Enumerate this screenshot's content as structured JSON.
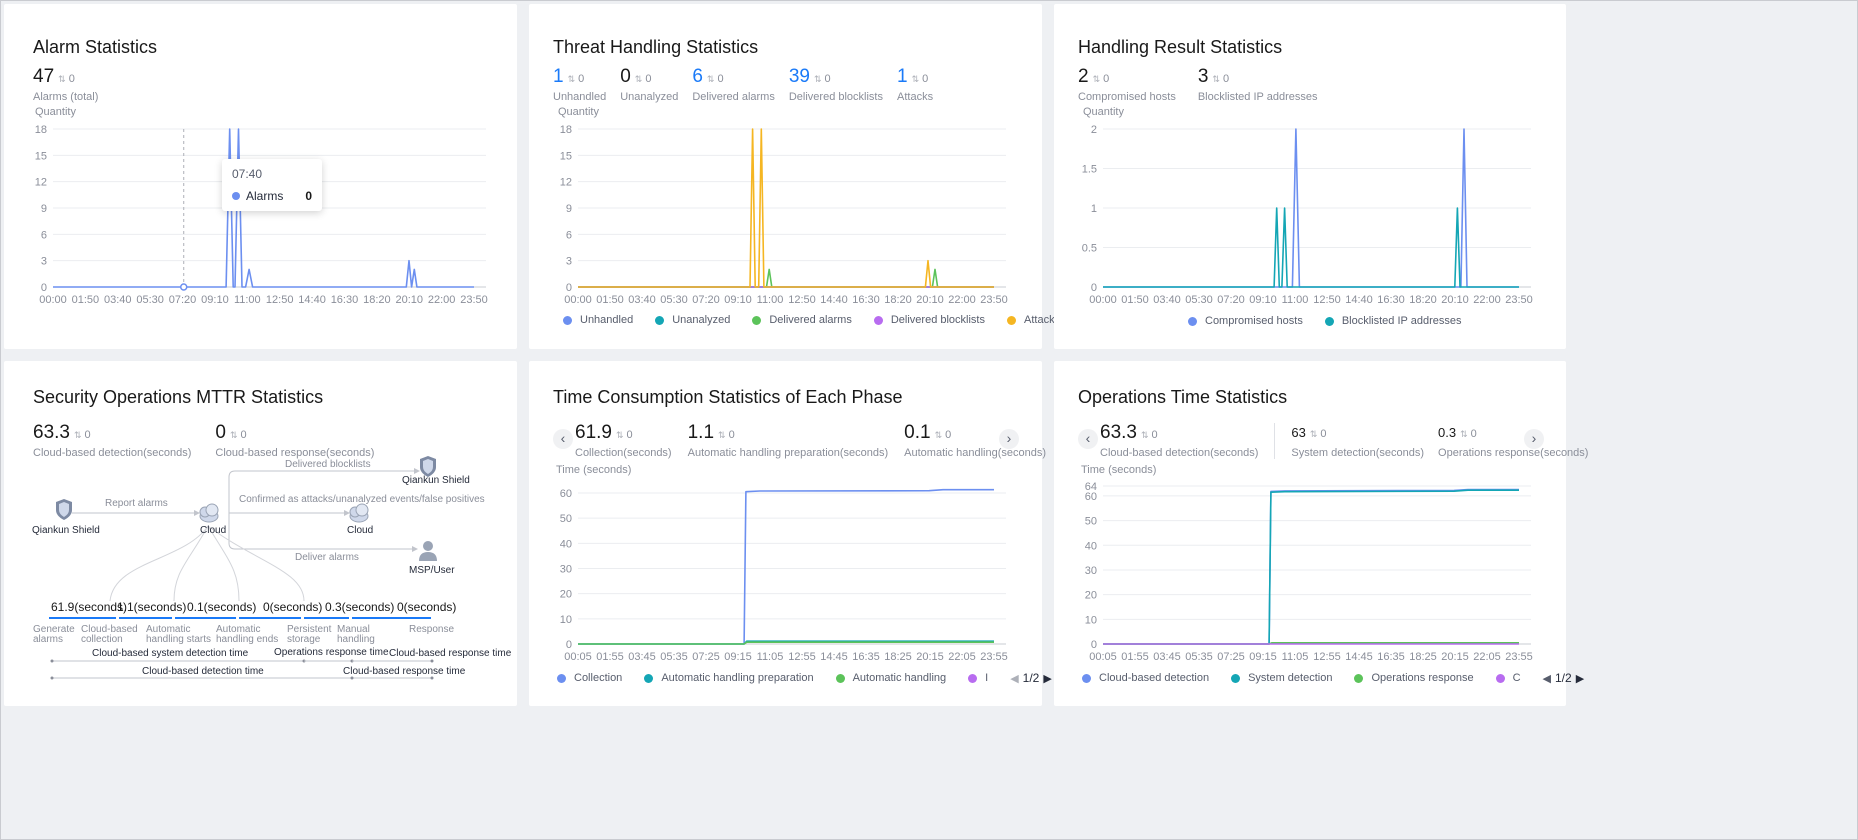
{
  "colors": {
    "blue": "#6c8ff0",
    "teal": "#14a6b5",
    "green": "#5cc35a",
    "purple": "#b86cf0",
    "orange": "#f5b622",
    "grid": "#ebedf0",
    "accent": "#1a7af8"
  },
  "cards": {
    "alarm": {
      "title": "Alarm Statistics",
      "kpis": [
        {
          "value": "47",
          "cmp": "0",
          "label": "Alarms (total)"
        }
      ],
      "ylabel": "Quantity",
      "tooltip": {
        "time": "07:40",
        "series": "Alarms",
        "value": "0"
      }
    },
    "threat": {
      "title": "Threat Handling Statistics",
      "kpis": [
        {
          "value": "1",
          "cmp": "0",
          "label": "Unhandled"
        },
        {
          "value": "0",
          "cmp": "0",
          "label": "Unanalyzed"
        },
        {
          "value": "6",
          "cmp": "0",
          "label": "Delivered alarms"
        },
        {
          "value": "39",
          "cmp": "0",
          "label": "Delivered blocklists"
        },
        {
          "value": "1",
          "cmp": "0",
          "label": "Attacks"
        }
      ],
      "ylabel": "Quantity",
      "legend": [
        "Unhandled",
        "Unanalyzed",
        "Delivered alarms",
        "Delivered blocklists",
        "Attacks"
      ]
    },
    "result": {
      "title": "Handling Result Statistics",
      "kpis": [
        {
          "value": "2",
          "cmp": "0",
          "label": "Compromised hosts"
        },
        {
          "value": "3",
          "cmp": "0",
          "label": "Blocklisted IP addresses"
        }
      ],
      "ylabel": "Quantity",
      "legend": [
        "Compromised hosts",
        "Blocklisted IP addresses"
      ]
    },
    "mttr": {
      "title": "Security Operations MTTR Statistics",
      "kpis": [
        {
          "value": "63.3",
          "cmp": "0",
          "label": "Cloud-based detection(seconds)"
        },
        {
          "value": "0",
          "cmp": "0",
          "label": "Cloud-based response(seconds)"
        }
      ],
      "flow": {
        "source": "Qiankun Shield",
        "cloud": "Cloud",
        "report": "Report alarms",
        "delivered_blocklists": "Delivered blocklists",
        "target_shield": "Qiankun Shield",
        "confirmed": "Confirmed as attacks/unanalyzed events/false positives",
        "target_cloud": "Cloud",
        "deliver_alarms": "Deliver alarms",
        "target_user": "MSP/User"
      },
      "steps": [
        "61.9(seconds)",
        "1.1(seconds)",
        "0.1(seconds)",
        "0(seconds)",
        "0.3(seconds)",
        "0(seconds)"
      ],
      "phases": [
        [
          "Generate",
          "alarms"
        ],
        [
          "Cloud-based",
          "collection"
        ],
        [
          "Automatic",
          "handling starts"
        ],
        [
          "Automatic",
          "handling ends"
        ],
        [
          "Persistent",
          "storage"
        ],
        [
          "Manual",
          "handling"
        ],
        [
          "Response"
        ]
      ],
      "ranges": {
        "system_detection": "Cloud-based system detection time",
        "ops_response": "Operations response time",
        "cloud_response": "Cloud-based response time",
        "cloud_detection": "Cloud-based detection time",
        "cloud_response_2": "Cloud-based response time"
      }
    },
    "phase": {
      "title": "Time Consumption Statistics of Each Phase",
      "kpis": [
        {
          "value": "61.9",
          "cmp": "0",
          "label": "Collection(seconds)"
        },
        {
          "value": "1.1",
          "cmp": "0",
          "label": "Automatic handling preparation(seconds)"
        },
        {
          "value": "0.1",
          "cmp": "0",
          "label": "Automatic handling(seconds)"
        }
      ],
      "ylabel": "Time (seconds)",
      "legend": [
        "Collection",
        "Automatic handling preparation",
        "Automatic handling",
        "I"
      ],
      "pager": "1/2"
    },
    "ops": {
      "title": "Operations Time Statistics",
      "kpis": [
        {
          "value": "63.3",
          "cmp": "0",
          "label": "Cloud-based detection(seconds)"
        },
        {
          "value": "63",
          "cmp": "0",
          "label": "System detection(seconds)"
        },
        {
          "value": "0.3",
          "cmp": "0",
          "label": "Operations response(seconds)"
        }
      ],
      "ylabel": "Time (seconds)",
      "legend": [
        "Cloud-based detection",
        "System detection",
        "Operations response",
        "C"
      ],
      "pager": "1/2"
    }
  },
  "chart_data": [
    {
      "type": "line",
      "title": "Alarm Statistics",
      "ylabel": "Quantity",
      "ylim": [
        0,
        18
      ],
      "yticks": [
        "0",
        "3",
        "6",
        "9",
        "12",
        "15",
        "18"
      ],
      "xticks": [
        "00:00",
        "01:50",
        "03:40",
        "05:30",
        "07:20",
        "09:10",
        "11:00",
        "12:50",
        "14:40",
        "16:30",
        "18:20",
        "20:10",
        "22:00",
        "23:50"
      ],
      "series": [
        {
          "name": "Alarms",
          "color": "#6c8ff0",
          "points": [
            [
              0,
              0
            ],
            [
              9.8,
              0
            ],
            [
              10.0,
              18
            ],
            [
              10.2,
              0
            ],
            [
              10.3,
              0
            ],
            [
              10.5,
              18
            ],
            [
              10.7,
              0
            ],
            [
              10.9,
              0
            ],
            [
              11.1,
              2
            ],
            [
              11.3,
              0
            ],
            [
              20.0,
              0
            ],
            [
              20.15,
              3
            ],
            [
              20.3,
              0
            ],
            [
              20.45,
              2
            ],
            [
              20.6,
              0
            ],
            [
              23.83,
              0
            ]
          ]
        }
      ]
    },
    {
      "type": "line",
      "title": "Threat Handling Statistics",
      "ylabel": "Quantity",
      "ylim": [
        0,
        18
      ],
      "yticks": [
        "0",
        "3",
        "6",
        "9",
        "12",
        "15",
        "18"
      ],
      "xticks": [
        "00:00",
        "01:50",
        "03:40",
        "05:30",
        "07:20",
        "09:10",
        "11:00",
        "12:50",
        "14:40",
        "16:30",
        "18:20",
        "20:10",
        "22:00",
        "23:50"
      ],
      "series": [
        {
          "name": "Unhandled",
          "color": "#6c8ff0",
          "points": [
            [
              0,
              0
            ],
            [
              23.83,
              0
            ]
          ]
        },
        {
          "name": "Unanalyzed",
          "color": "#14a6b5",
          "points": [
            [
              0,
              0
            ],
            [
              23.83,
              0
            ]
          ]
        },
        {
          "name": "Delivered alarms",
          "color": "#5cc35a",
          "points": [
            [
              0,
              0
            ],
            [
              10.8,
              0
            ],
            [
              10.95,
              2
            ],
            [
              11.1,
              0
            ],
            [
              20.3,
              0
            ],
            [
              20.45,
              2
            ],
            [
              20.6,
              0
            ],
            [
              23.83,
              0
            ]
          ]
        },
        {
          "name": "Delivered blocklists",
          "color": "#b86cf0",
          "points": [
            [
              0,
              0
            ],
            [
              23.83,
              0
            ]
          ]
        },
        {
          "name": "Attacks",
          "color": "#f5b622",
          "points": [
            [
              0,
              0
            ],
            [
              9.85,
              0
            ],
            [
              10.0,
              18
            ],
            [
              10.15,
              0
            ],
            [
              10.35,
              0
            ],
            [
              10.5,
              18
            ],
            [
              10.65,
              0
            ],
            [
              19.9,
              0
            ],
            [
              20.05,
              3
            ],
            [
              20.2,
              0
            ],
            [
              23.83,
              0
            ]
          ]
        }
      ]
    },
    {
      "type": "line",
      "title": "Handling Result Statistics",
      "ylabel": "Quantity",
      "ylim": [
        0,
        2
      ],
      "yticks": [
        "0",
        "0.5",
        "1",
        "1.5",
        "2"
      ],
      "xticks": [
        "00:00",
        "01:50",
        "03:40",
        "05:30",
        "07:20",
        "09:10",
        "11:00",
        "12:50",
        "14:40",
        "16:30",
        "18:20",
        "20:10",
        "22:00",
        "23:50"
      ],
      "series": [
        {
          "name": "Compromised hosts",
          "color": "#6c8ff0",
          "points": [
            [
              0,
              0
            ],
            [
              10.85,
              0
            ],
            [
              11.05,
              2
            ],
            [
              11.25,
              0
            ],
            [
              20.5,
              0
            ],
            [
              20.68,
              2
            ],
            [
              20.85,
              0
            ],
            [
              23.83,
              0
            ]
          ]
        },
        {
          "name": "Blocklisted IP addresses",
          "color": "#14a6b5",
          "points": [
            [
              0,
              0
            ],
            [
              9.8,
              0
            ],
            [
              9.95,
              1
            ],
            [
              10.1,
              0
            ],
            [
              10.25,
              0
            ],
            [
              10.4,
              1
            ],
            [
              10.55,
              0
            ],
            [
              20.15,
              0
            ],
            [
              20.3,
              1
            ],
            [
              20.45,
              0
            ],
            [
              23.83,
              0
            ]
          ]
        }
      ]
    },
    {
      "type": "line",
      "title": "Time Consumption Statistics of Each Phase",
      "ylabel": "Time (seconds)",
      "ylim": [
        0,
        60
      ],
      "yticks": [
        "0",
        "10",
        "20",
        "30",
        "40",
        "50",
        "60"
      ],
      "xticks": [
        "00:05",
        "01:55",
        "03:45",
        "05:35",
        "07:25",
        "09:15",
        "11:05",
        "12:55",
        "14:45",
        "16:35",
        "18:25",
        "20:15",
        "22:05",
        "23:55"
      ],
      "series": [
        {
          "name": "Collection",
          "color": "#6c8ff0",
          "points": [
            [
              0.08,
              0
            ],
            [
              9.6,
              0
            ],
            [
              9.7,
              60.5
            ],
            [
              10.5,
              60.8
            ],
            [
              20.2,
              60.9
            ],
            [
              21.0,
              61.3
            ],
            [
              23.92,
              61.3
            ]
          ]
        },
        {
          "name": "Automatic handling preparation",
          "color": "#14a6b5",
          "points": [
            [
              0.08,
              0
            ],
            [
              9.6,
              0
            ],
            [
              9.75,
              1.1
            ],
            [
              23.92,
              1.1
            ]
          ]
        },
        {
          "name": "Automatic handling",
          "color": "#5cc35a",
          "points": [
            [
              0.08,
              0
            ],
            [
              9.6,
              0
            ],
            [
              9.75,
              0.7
            ],
            [
              23.92,
              0.7
            ]
          ]
        }
      ]
    },
    {
      "type": "line",
      "title": "Operations Time Statistics",
      "ylabel": "Time (seconds)",
      "ylim": [
        0,
        64
      ],
      "yticks": [
        "0",
        "10",
        "20",
        "30",
        "40",
        "50",
        "60",
        "64"
      ],
      "xticks": [
        "00:05",
        "01:55",
        "03:45",
        "05:35",
        "07:25",
        "09:15",
        "11:05",
        "12:55",
        "14:45",
        "16:35",
        "18:25",
        "20:15",
        "22:05",
        "23:55"
      ],
      "series": [
        {
          "name": "Cloud-based detection",
          "color": "#6c8ff0",
          "points": [
            [
              0.08,
              0
            ],
            [
              9.6,
              0
            ],
            [
              9.7,
              61.8
            ],
            [
              10.5,
              62.0
            ],
            [
              20.2,
              62.2
            ],
            [
              21.0,
              62.6
            ],
            [
              23.92,
              62.6
            ]
          ]
        },
        {
          "name": "System detection",
          "color": "#14a6b5",
          "points": [
            [
              0.08,
              0
            ],
            [
              9.6,
              0
            ],
            [
              9.7,
              61.5
            ],
            [
              10.5,
              61.7
            ],
            [
              20.2,
              61.9
            ],
            [
              21.0,
              62.3
            ],
            [
              23.92,
              62.3
            ]
          ]
        },
        {
          "name": "Operations response",
          "color": "#5cc35a",
          "points": [
            [
              0.08,
              0
            ],
            [
              9.6,
              0
            ],
            [
              9.75,
              0.5
            ],
            [
              23.92,
              0.5
            ]
          ]
        },
        {
          "name": "C",
          "color": "#b86cf0",
          "points": [
            [
              0.08,
              0
            ],
            [
              23.92,
              0
            ]
          ]
        }
      ]
    }
  ]
}
